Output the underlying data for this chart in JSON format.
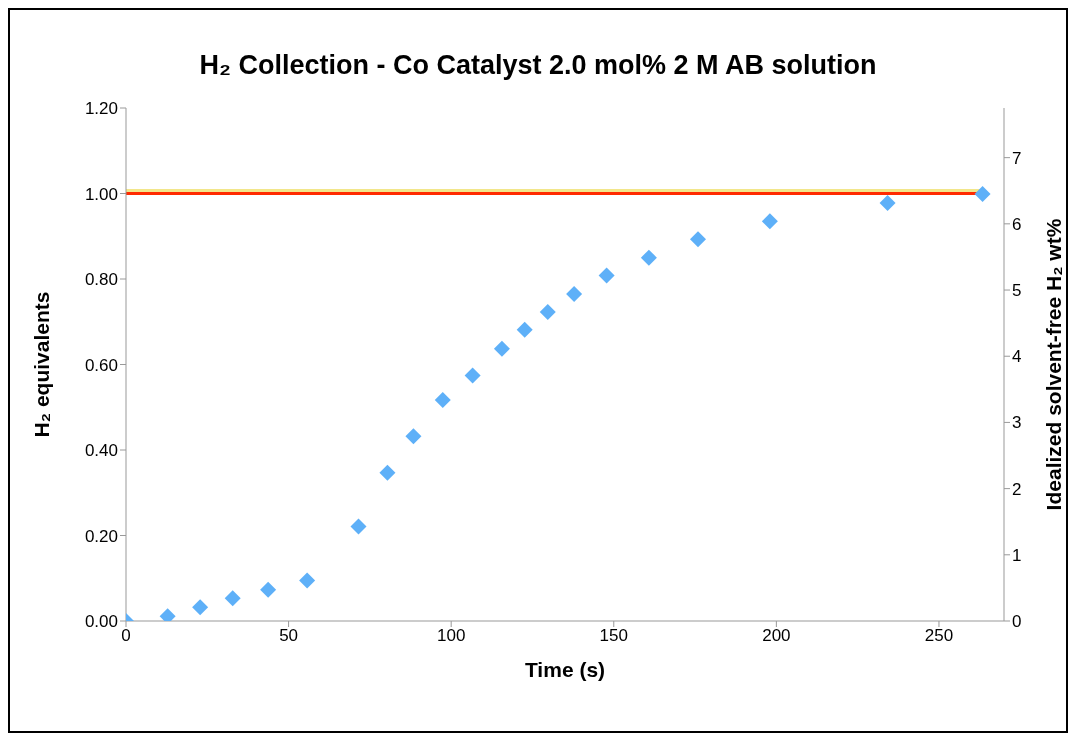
{
  "chart_data": {
    "type": "scatter",
    "title": "H₂ Collection - Co Catalyst 2.0 mol% 2 M AB solution",
    "xlabel": "Time (s)",
    "ylabel": "H₂ equivalents",
    "y2label": "Idealized solvent-free H₂ wt%",
    "xlim": [
      0,
      270
    ],
    "xticks": [
      0,
      50,
      100,
      150,
      200,
      250
    ],
    "ylim": [
      0,
      1.2
    ],
    "yticks": [
      {
        "value": 0,
        "label": "0.00"
      },
      {
        "value": 0.2,
        "label": "0.20"
      },
      {
        "value": 0.4,
        "label": "0.40"
      },
      {
        "value": 0.6,
        "label": "0.60"
      },
      {
        "value": 0.8,
        "label": "0.80"
      },
      {
        "value": 1,
        "label": "1.00"
      },
      {
        "value": 1.2,
        "label": "1.20"
      }
    ],
    "y2lim": [
      0,
      7.75
    ],
    "y2ticks": [
      0,
      1,
      2,
      3,
      4,
      5,
      6,
      7
    ],
    "grid": false,
    "legend": false,
    "series": [
      {
        "type": "line",
        "color": "#f2e68a",
        "marker": "none",
        "x": [
          0,
          263
        ],
        "values": [
          1.007,
          1.007
        ]
      },
      {
        "type": "line",
        "color": "#ff2a00",
        "marker": "none",
        "x": [
          0,
          263
        ],
        "values": [
          1.0,
          1.0
        ]
      },
      {
        "color": "#5eb0f8",
        "marker": "diamond",
        "x": [
          0,
          12.8,
          22.8,
          32.8,
          43.7,
          55.7,
          71.5,
          80.4,
          88.4,
          97.4,
          106.6,
          115.6,
          122.6,
          129.7,
          137.8,
          147.8,
          160.8,
          175.9,
          198.0,
          234.2,
          263.4
        ],
        "values": [
          0,
          0.011,
          0.032,
          0.053,
          0.073,
          0.095,
          0.221,
          0.347,
          0.432,
          0.517,
          0.574,
          0.637,
          0.681,
          0.723,
          0.765,
          0.808,
          0.85,
          0.893,
          0.935,
          0.978,
          0.999
        ]
      }
    ]
  }
}
